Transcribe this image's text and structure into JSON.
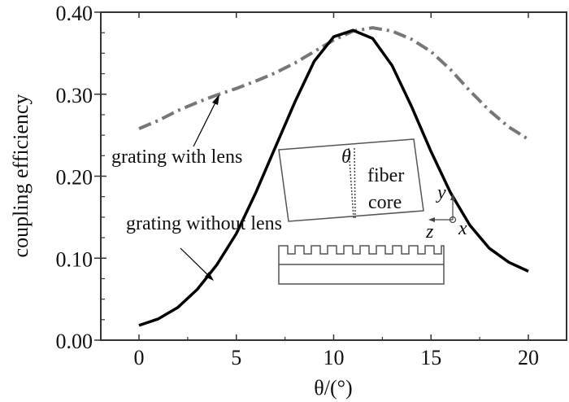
{
  "chart_data": {
    "type": "line",
    "title": "",
    "xlabel": "θ/(°)",
    "ylabel": "coupling efficiency",
    "xlim": [
      -2.5,
      22
    ],
    "ylim": [
      0,
      0.4
    ],
    "xticks": [
      "0",
      "5",
      "10",
      "15",
      "20"
    ],
    "xtick_values": [
      0,
      5,
      10,
      15,
      20
    ],
    "yticks": [
      "0.00",
      "0.10",
      "0.20",
      "0.30",
      "0.40"
    ],
    "ytick_values": [
      0,
      0.1,
      0.2,
      0.3,
      0.4
    ],
    "grid": false,
    "series": [
      {
        "name": "grating with lens",
        "style": "dash-dot",
        "color": "#777777",
        "x": [
          0,
          1,
          2,
          3,
          4,
          5,
          6,
          7,
          8,
          9,
          10,
          11,
          12,
          13,
          14,
          15,
          16,
          17,
          18,
          19,
          20
        ],
        "y": [
          0.258,
          0.268,
          0.28,
          0.29,
          0.299,
          0.307,
          0.316,
          0.326,
          0.338,
          0.352,
          0.366,
          0.377,
          0.381,
          0.377,
          0.367,
          0.352,
          0.33,
          0.304,
          0.28,
          0.26,
          0.245
        ]
      },
      {
        "name": "grating without lens",
        "style": "solid",
        "color": "#000000",
        "x": [
          0,
          1,
          2,
          3,
          4,
          5,
          6,
          7,
          8,
          9,
          10,
          11,
          12,
          13,
          14,
          15,
          16,
          17,
          18,
          19,
          20
        ],
        "y": [
          0.018,
          0.026,
          0.04,
          0.062,
          0.092,
          0.13,
          0.18,
          0.235,
          0.29,
          0.34,
          0.37,
          0.378,
          0.368,
          0.335,
          0.285,
          0.23,
          0.18,
          0.14,
          0.112,
          0.095,
          0.084
        ]
      }
    ],
    "annotations": {
      "with_lens": "grating with lens",
      "without_lens": "grating without lens",
      "theta": "θ",
      "fiber": "fiber",
      "core": "core",
      "axis_y": "y",
      "axis_z": "z",
      "axis_x": "x"
    }
  }
}
